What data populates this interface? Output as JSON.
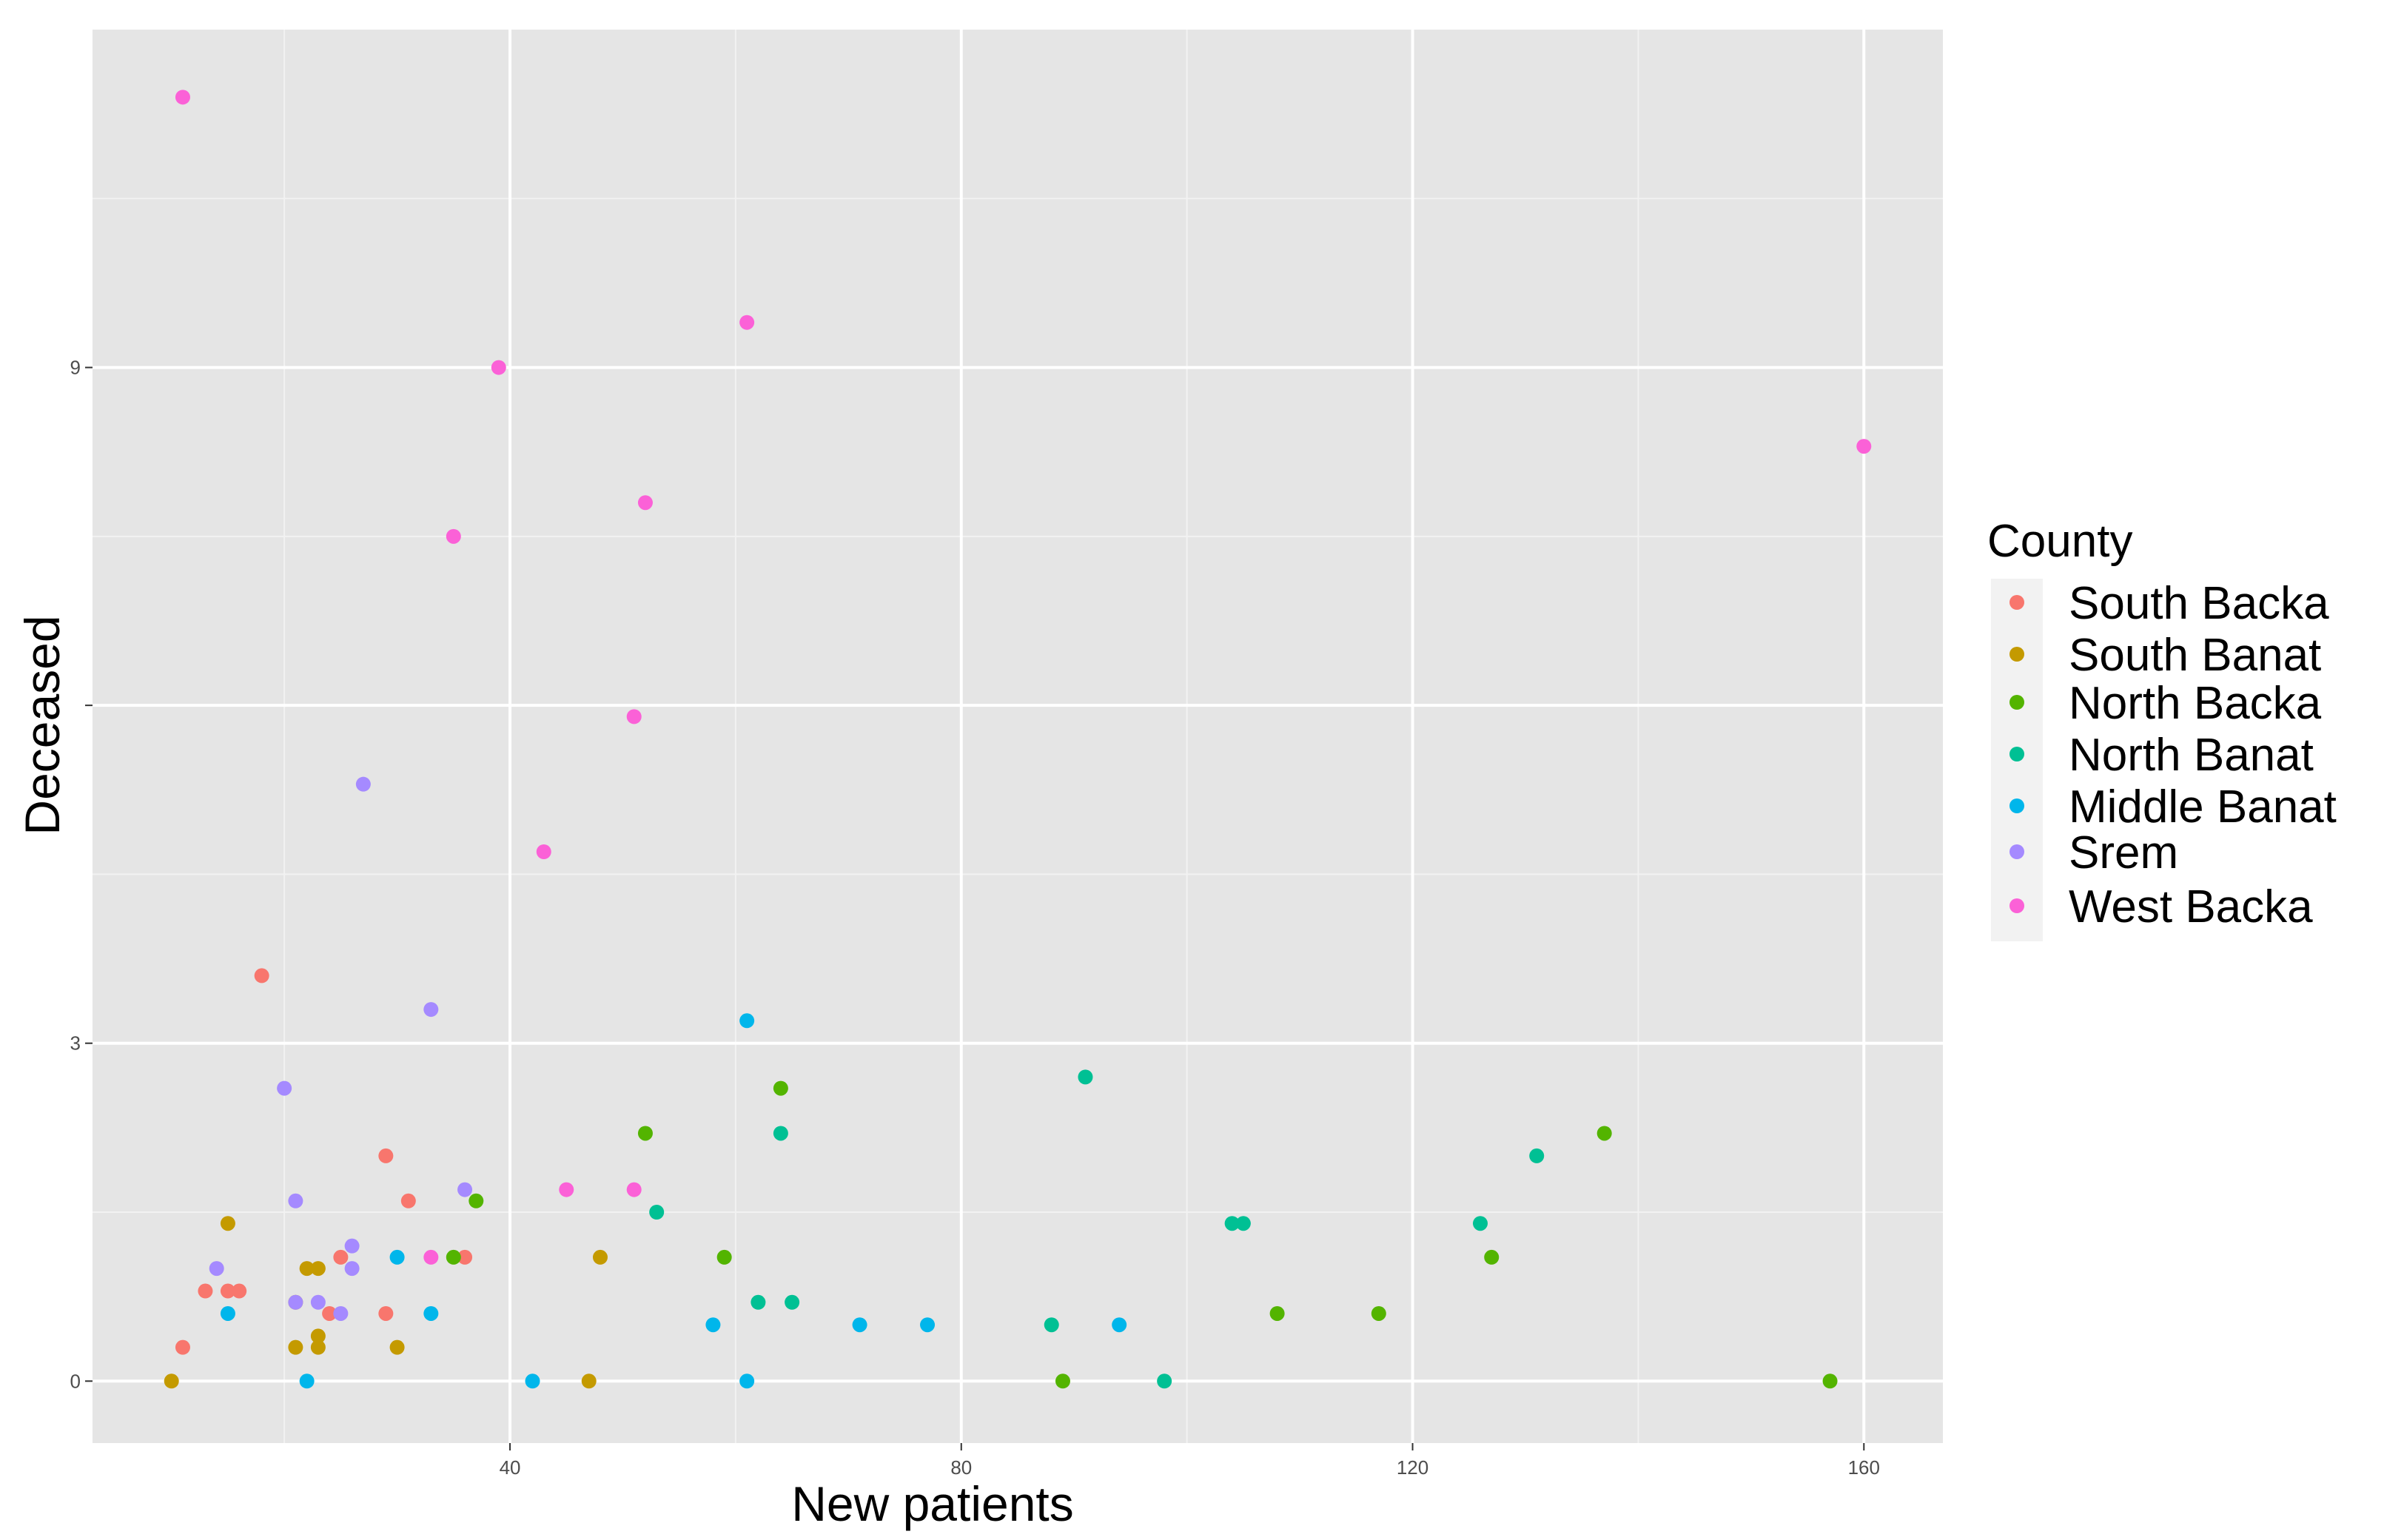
{
  "chart_data": {
    "type": "scatter",
    "xlabel": "New patients",
    "ylabel": "Deceased",
    "xlim": [
      3,
      167
    ],
    "ylim": [
      -0.55,
      12
    ],
    "x_ticks": [
      40,
      80,
      120,
      160
    ],
    "x_tick_labels": [
      "40",
      "80",
      "120",
      "160"
    ],
    "y_ticks": [
      0,
      3,
      6,
      9
    ],
    "y_tick_labels": [
      "0",
      "3",
      "",
      "9"
    ],
    "grid": true,
    "background": "#e5e5e5",
    "legend": {
      "title": "County",
      "position": "right",
      "entries": [
        "South Backa",
        "South Banat",
        "North Backa",
        "North Banat",
        "Middle Banat",
        "Srem",
        "West Backa"
      ]
    },
    "series": [
      {
        "name": "South Backa",
        "color": "#f8766d",
        "points": [
          [
            11,
            0.3
          ],
          [
            13,
            0.8
          ],
          [
            15,
            0.8
          ],
          [
            16,
            0.8
          ],
          [
            18,
            3.6
          ],
          [
            24,
            0.6
          ],
          [
            25,
            1.1
          ],
          [
            29,
            0.6
          ],
          [
            29,
            2.0
          ],
          [
            31,
            1.6
          ],
          [
            36,
            1.1
          ]
        ]
      },
      {
        "name": "South Banat",
        "color": "#c49a00",
        "points": [
          [
            10,
            0.0
          ],
          [
            15,
            1.4
          ],
          [
            21,
            0.3
          ],
          [
            21,
            0.7
          ],
          [
            22,
            1.0
          ],
          [
            23,
            0.3
          ],
          [
            23,
            0.4
          ],
          [
            23,
            1.0
          ],
          [
            30,
            0.3
          ],
          [
            47,
            0.0
          ],
          [
            48,
            1.1
          ]
        ]
      },
      {
        "name": "North Backa",
        "color": "#53b400",
        "points": [
          [
            35,
            1.1
          ],
          [
            37,
            1.6
          ],
          [
            52,
            2.2
          ],
          [
            59,
            1.1
          ],
          [
            64,
            2.6
          ],
          [
            89,
            0.0
          ],
          [
            108,
            0.6
          ],
          [
            117,
            0.6
          ],
          [
            127,
            1.1
          ],
          [
            137,
            2.2
          ],
          [
            157,
            0.0
          ]
        ]
      },
      {
        "name": "North Banat",
        "color": "#00c094",
        "points": [
          [
            53,
            1.5
          ],
          [
            62,
            0.7
          ],
          [
            64,
            2.2
          ],
          [
            65,
            0.7
          ],
          [
            88,
            0.5
          ],
          [
            91,
            2.7
          ],
          [
            98,
            0.0
          ],
          [
            104,
            1.4
          ],
          [
            105,
            1.4
          ],
          [
            126,
            1.4
          ],
          [
            131,
            2.0
          ]
        ]
      },
      {
        "name": "Middle Banat",
        "color": "#00b6eb",
        "points": [
          [
            15,
            0.6
          ],
          [
            22,
            0.0
          ],
          [
            30,
            1.1
          ],
          [
            33,
            0.6
          ],
          [
            42,
            0.0
          ],
          [
            58,
            0.5
          ],
          [
            61,
            0.0
          ],
          [
            61,
            3.2
          ],
          [
            71,
            0.5
          ],
          [
            77,
            0.5
          ],
          [
            94,
            0.5
          ]
        ]
      },
      {
        "name": "Srem",
        "color": "#a58aff",
        "points": [
          [
            14,
            1.0
          ],
          [
            20,
            2.6
          ],
          [
            21,
            0.7
          ],
          [
            21,
            1.6
          ],
          [
            23,
            0.7
          ],
          [
            25,
            0.6
          ],
          [
            26,
            1.0
          ],
          [
            26,
            1.2
          ],
          [
            27,
            5.3
          ],
          [
            33,
            3.3
          ],
          [
            36,
            1.7
          ]
        ]
      },
      {
        "name": "West Backa",
        "color": "#fb61d7",
        "points": [
          [
            11,
            11.4
          ],
          [
            33,
            1.1
          ],
          [
            35,
            7.5
          ],
          [
            39,
            9.0
          ],
          [
            43,
            4.7
          ],
          [
            45,
            1.7
          ],
          [
            51,
            5.9
          ],
          [
            51,
            1.7
          ],
          [
            52,
            7.8
          ],
          [
            61,
            9.4
          ],
          [
            160,
            8.3
          ]
        ]
      }
    ]
  }
}
